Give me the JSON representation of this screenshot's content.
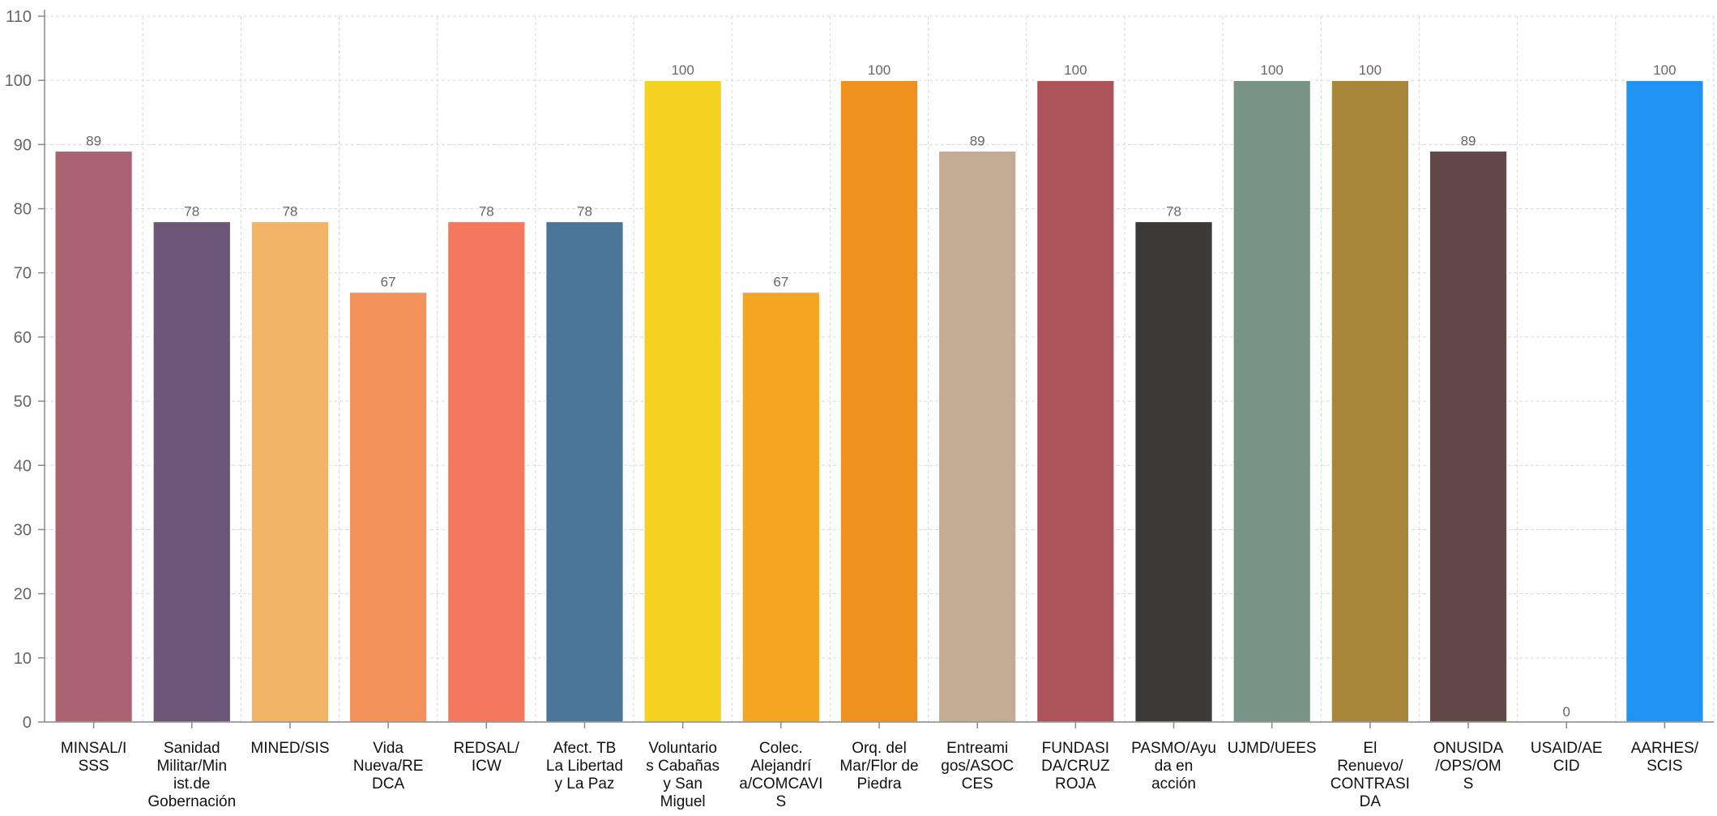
{
  "chart_data": {
    "type": "bar",
    "categories": [
      [
        "MINSAL/I",
        "SSS"
      ],
      [
        "Sanidad",
        "Militar/Min",
        "ist.de",
        "Gobernación"
      ],
      [
        "MINED/SIS"
      ],
      [
        "Vida",
        "Nueva/RE",
        "DCA"
      ],
      [
        "REDSAL/",
        "ICW"
      ],
      [
        "Afect. TB",
        "La Libertad",
        "y La Paz"
      ],
      [
        "Voluntario",
        "s Cabañas",
        "y San",
        "Miguel"
      ],
      [
        "Colec.",
        "Alejandrí",
        "a/COMCAVI",
        "S"
      ],
      [
        "Orq. del",
        "Mar/Flor de",
        "Piedra"
      ],
      [
        "Entreami",
        "gos/ASOC",
        "CES"
      ],
      [
        "FUNDASI",
        "DA/CRUZ",
        "ROJA"
      ],
      [
        "PASMO/Ayu",
        "da en",
        "acción"
      ],
      [
        "UJMD/UEES"
      ],
      [
        "El",
        "Renuevo/",
        "CONTRASI",
        "DA"
      ],
      [
        "ONUSIDA",
        "/OPS/OM",
        "S"
      ],
      [
        "USAID/AE",
        "CID"
      ],
      [
        "AARHES/",
        "SCIS"
      ]
    ],
    "values": [
      89,
      78,
      78,
      67,
      78,
      78,
      100,
      67,
      100,
      89,
      100,
      78,
      100,
      100,
      89,
      0,
      100
    ],
    "colors": [
      "#ab6372",
      "#6b5677",
      "#f2b466",
      "#f3925a",
      "#f4785d",
      "#4a7597",
      "#f3d221",
      "#f4a623",
      "#ef911e",
      "#c4ab93",
      "#ad535a",
      "#3b3a38",
      "#799389",
      "#a8873c",
      "#634848",
      "#cccccc",
      "#1f92f2"
    ],
    "title": "",
    "xlabel": "",
    "ylabel": "",
    "ylim": [
      0,
      110
    ],
    "yticks": [
      0,
      10,
      20,
      30,
      40,
      50,
      60,
      70,
      80,
      90,
      100,
      110
    ],
    "grid": true,
    "data_labels": true,
    "legend": "none"
  }
}
